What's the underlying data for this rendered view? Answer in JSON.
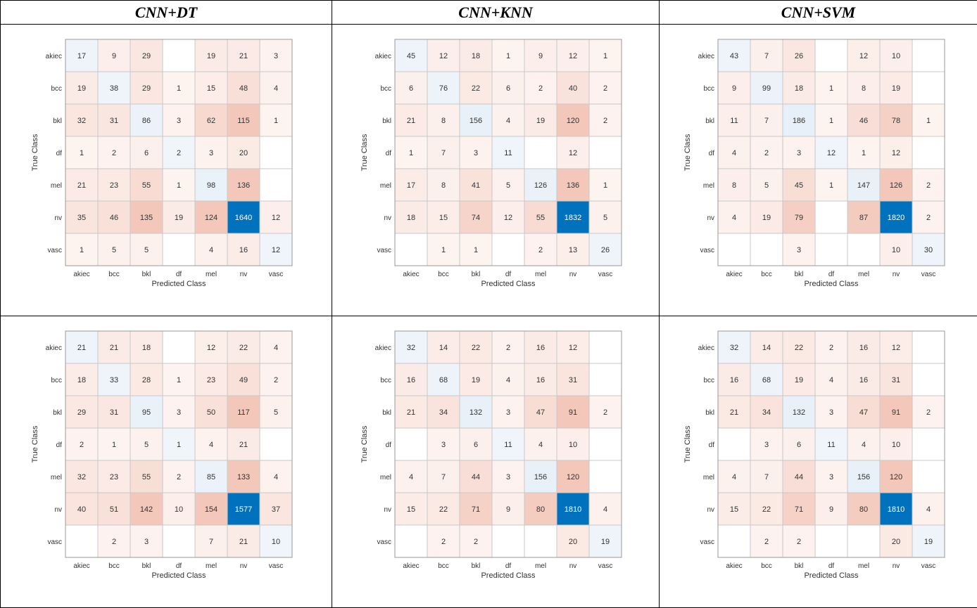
{
  "columns": [
    "CNN+DT",
    "CNN+KNN",
    "CNN+SVM"
  ],
  "chart_data": [
    {
      "type": "heatmap",
      "row": 1,
      "column": "CNN+DT",
      "xlabel": "Predicted Class",
      "ylabel": "True Class",
      "classes": [
        "akiec",
        "bcc",
        "bkl",
        "df",
        "mel",
        "nv",
        "vasc"
      ],
      "matrix": [
        [
          17,
          9,
          29,
          null,
          19,
          21,
          3
        ],
        [
          19,
          38,
          29,
          1,
          15,
          48,
          4
        ],
        [
          32,
          31,
          86,
          3,
          62,
          115,
          1
        ],
        [
          1,
          2,
          6,
          2,
          3,
          20,
          null
        ],
        [
          21,
          23,
          55,
          1,
          98,
          136,
          null
        ],
        [
          35,
          46,
          135,
          19,
          124,
          1640,
          12
        ],
        [
          1,
          5,
          5,
          null,
          4,
          16,
          12
        ]
      ]
    },
    {
      "type": "heatmap",
      "row": 1,
      "column": "CNN+KNN",
      "xlabel": "Predicted Class",
      "ylabel": "True Class",
      "classes": [
        "akiec",
        "bcc",
        "bkl",
        "df",
        "mel",
        "nv",
        "vasc"
      ],
      "matrix": [
        [
          45,
          12,
          18,
          1,
          9,
          12,
          1
        ],
        [
          6,
          76,
          22,
          6,
          2,
          40,
          2
        ],
        [
          21,
          8,
          156,
          4,
          19,
          120,
          2
        ],
        [
          1,
          7,
          3,
          11,
          null,
          12,
          null
        ],
        [
          17,
          8,
          41,
          5,
          126,
          136,
          1
        ],
        [
          18,
          15,
          74,
          12,
          55,
          1832,
          5
        ],
        [
          null,
          1,
          1,
          null,
          2,
          13,
          26
        ]
      ]
    },
    {
      "type": "heatmap",
      "row": 1,
      "column": "CNN+SVM",
      "xlabel": "Predicted Class",
      "ylabel": "True Class",
      "classes": [
        "akiec",
        "bcc",
        "bkl",
        "df",
        "mel",
        "nv",
        "vasc"
      ],
      "matrix": [
        [
          43,
          7,
          26,
          null,
          12,
          10,
          null
        ],
        [
          9,
          99,
          18,
          1,
          8,
          19,
          null
        ],
        [
          11,
          7,
          186,
          1,
          46,
          78,
          1
        ],
        [
          4,
          2,
          3,
          12,
          1,
          12,
          null
        ],
        [
          8,
          5,
          45,
          1,
          147,
          126,
          2
        ],
        [
          4,
          19,
          79,
          null,
          87,
          1820,
          2
        ],
        [
          null,
          null,
          3,
          null,
          null,
          10,
          30
        ]
      ]
    },
    {
      "type": "heatmap",
      "row": 2,
      "column": "CNN+DT",
      "xlabel": "Predicted Class",
      "ylabel": "True Class",
      "classes": [
        "akiec",
        "bcc",
        "bkl",
        "df",
        "mel",
        "nv",
        "vasc"
      ],
      "matrix": [
        [
          21,
          21,
          18,
          null,
          12,
          22,
          4
        ],
        [
          18,
          33,
          28,
          1,
          23,
          49,
          2
        ],
        [
          29,
          31,
          95,
          3,
          50,
          117,
          5
        ],
        [
          2,
          1,
          5,
          1,
          4,
          21,
          null
        ],
        [
          32,
          23,
          55,
          2,
          85,
          133,
          4
        ],
        [
          40,
          51,
          142,
          10,
          154,
          1577,
          37
        ],
        [
          null,
          2,
          3,
          null,
          7,
          21,
          10
        ]
      ]
    },
    {
      "type": "heatmap",
      "row": 2,
      "column": "CNN+KNN",
      "xlabel": "Predicted Class",
      "ylabel": "True Class",
      "classes": [
        "akiec",
        "bcc",
        "bkl",
        "df",
        "mel",
        "nv",
        "vasc"
      ],
      "matrix": [
        [
          32,
          14,
          22,
          2,
          16,
          12,
          null
        ],
        [
          16,
          68,
          19,
          4,
          16,
          31,
          null
        ],
        [
          21,
          34,
          132,
          3,
          47,
          91,
          2
        ],
        [
          null,
          3,
          6,
          11,
          4,
          10,
          null
        ],
        [
          4,
          7,
          44,
          3,
          156,
          120,
          null
        ],
        [
          15,
          22,
          71,
          9,
          80,
          1810,
          4
        ],
        [
          null,
          2,
          2,
          null,
          null,
          20,
          19
        ]
      ]
    },
    {
      "type": "heatmap",
      "row": 2,
      "column": "CNN+SVM",
      "xlabel": "Predicted Class",
      "ylabel": "True Class",
      "classes": [
        "akiec",
        "bcc",
        "bkl",
        "df",
        "mel",
        "nv",
        "vasc"
      ],
      "matrix": [
        [
          32,
          14,
          22,
          2,
          16,
          12,
          null
        ],
        [
          16,
          68,
          19,
          4,
          16,
          31,
          null
        ],
        [
          21,
          34,
          132,
          3,
          47,
          91,
          2
        ],
        [
          null,
          3,
          6,
          11,
          4,
          10,
          null
        ],
        [
          4,
          7,
          44,
          3,
          156,
          120,
          null
        ],
        [
          15,
          22,
          71,
          9,
          80,
          1810,
          4
        ],
        [
          null,
          2,
          2,
          null,
          null,
          20,
          19
        ]
      ]
    }
  ],
  "colors": {
    "diagonal_max": "#0072bd",
    "diagonal_light": "#f0f5fa",
    "offdiag_light": "#fdf3f0",
    "offdiag_dark": "#f3c7b9",
    "grid": "#c8c8c8",
    "text_dark": "#333333",
    "text_light": "#ffffff"
  }
}
